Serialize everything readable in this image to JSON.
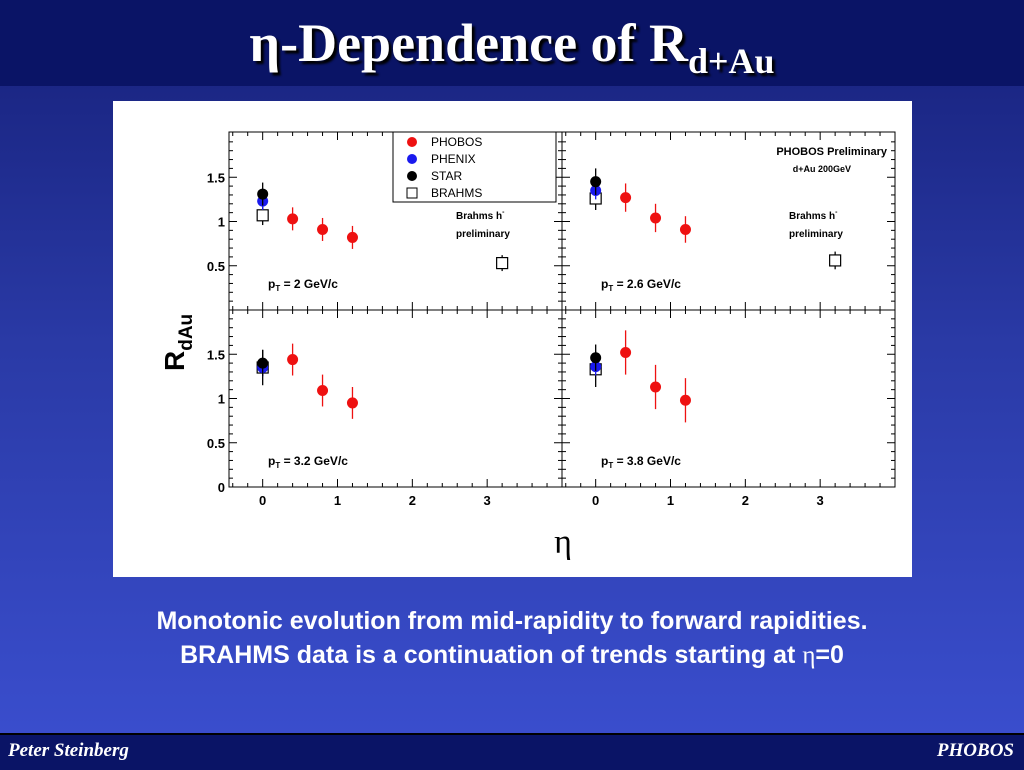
{
  "slide": {
    "title_prefix": "η-Dependence of R",
    "title_subscript": "d+Au",
    "caption_line1": "Monotonic evolution from mid-rapidity to forward rapidities.",
    "caption_line2_prefix": "BRAHMS data is a continuation of trends starting at ",
    "caption_line2_eta": "η",
    "caption_line2_suffix": "=0"
  },
  "footer": {
    "left": "Peter Steinberg",
    "right": "PHOBOS"
  },
  "chart_data": {
    "type": "scatter",
    "ylabel_main": "R",
    "ylabel_sub": "dAu",
    "xlabel": "η",
    "xlim": [
      -0.45,
      4.0
    ],
    "ylim": [
      0,
      2.0
    ],
    "xticks": [
      0,
      1,
      2,
      3
    ],
    "yticks": [
      0,
      0.5,
      1,
      1.5
    ],
    "ytick_labels": [
      "0",
      "0.5",
      "1",
      "1.5"
    ],
    "colors": {
      "PHOBOS": "#ee1111",
      "PHENIX": "#1a1aee",
      "STAR": "#000000",
      "BRAHMS": "#000000"
    },
    "legend": {
      "position": "top-left",
      "entries": [
        {
          "name": "PHOBOS",
          "marker": "filled-circle",
          "color": "#ee1111"
        },
        {
          "name": "PHENIX",
          "marker": "filled-circle",
          "color": "#1a1aee"
        },
        {
          "name": "STAR",
          "marker": "filled-circle",
          "color": "#000000"
        },
        {
          "name": "BRAHMS",
          "marker": "open-square",
          "color": "#000000"
        }
      ]
    },
    "top_right_label": {
      "line1": "PHOBOS Preliminary",
      "line2": "d+Au 200GeV"
    },
    "brahms_note": {
      "line1": "Brahms h",
      "sup": "-",
      "line2": "preliminary"
    },
    "panels": [
      {
        "pt_prefix": "p",
        "pt_sub": "T",
        "pt_value": " = 2 GeV/c",
        "show_brahms_note": true,
        "show_phobos_label": false,
        "show_legend": true,
        "series": [
          {
            "name": "PHOBOS",
            "points": [
              {
                "x": 0.4,
                "y": 1.03,
                "err": 0.13
              },
              {
                "x": 0.8,
                "y": 0.91,
                "err": 0.13
              },
              {
                "x": 1.2,
                "y": 0.82,
                "err": 0.13
              }
            ]
          },
          {
            "name": "BRAHMS",
            "points": [
              {
                "x": 0.0,
                "y": 1.07,
                "err": 0.11
              },
              {
                "x": 3.2,
                "y": 0.53,
                "err": 0.09
              }
            ]
          },
          {
            "name": "PHENIX",
            "points": [
              {
                "x": 0.0,
                "y": 1.23,
                "err": 0.1
              }
            ]
          },
          {
            "name": "STAR",
            "points": [
              {
                "x": 0.0,
                "y": 1.31,
                "err": 0.13
              }
            ]
          }
        ]
      },
      {
        "pt_prefix": "p",
        "pt_sub": "T",
        "pt_value": " = 2.6 GeV/c",
        "show_brahms_note": true,
        "show_phobos_label": true,
        "show_legend": false,
        "series": [
          {
            "name": "PHOBOS",
            "points": [
              {
                "x": 0.4,
                "y": 1.27,
                "err": 0.16
              },
              {
                "x": 0.8,
                "y": 1.04,
                "err": 0.16
              },
              {
                "x": 1.2,
                "y": 0.91,
                "err": 0.15
              }
            ]
          },
          {
            "name": "BRAHMS",
            "points": [
              {
                "x": 0.0,
                "y": 1.26,
                "err": 0.13
              },
              {
                "x": 3.2,
                "y": 0.56,
                "err": 0.1
              }
            ]
          },
          {
            "name": "PHENIX",
            "points": [
              {
                "x": 0.0,
                "y": 1.35,
                "err": 0.1
              }
            ]
          },
          {
            "name": "STAR",
            "points": [
              {
                "x": 0.0,
                "y": 1.45,
                "err": 0.15
              }
            ]
          }
        ]
      },
      {
        "pt_prefix": "p",
        "pt_sub": "T",
        "pt_value": " = 3.2 GeV/c",
        "show_brahms_note": false,
        "show_phobos_label": false,
        "show_legend": false,
        "series": [
          {
            "name": "PHOBOS",
            "points": [
              {
                "x": 0.4,
                "y": 1.44,
                "err": 0.18
              },
              {
                "x": 0.8,
                "y": 1.09,
                "err": 0.18
              },
              {
                "x": 1.2,
                "y": 0.95,
                "err": 0.18
              }
            ]
          },
          {
            "name": "BRAHMS",
            "points": [
              {
                "x": 0.0,
                "y": 1.35,
                "err": 0.2
              }
            ]
          },
          {
            "name": "PHENIX",
            "points": [
              {
                "x": 0.0,
                "y": 1.35,
                "err": 0.1
              }
            ]
          },
          {
            "name": "STAR",
            "points": [
              {
                "x": 0.0,
                "y": 1.4,
                "err": 0.15
              }
            ]
          }
        ]
      },
      {
        "pt_prefix": "p",
        "pt_sub": "T",
        "pt_value": " = 3.8 GeV/c",
        "show_brahms_note": false,
        "show_phobos_label": false,
        "show_legend": false,
        "series": [
          {
            "name": "PHOBOS",
            "points": [
              {
                "x": 0.4,
                "y": 1.52,
                "err": 0.25
              },
              {
                "x": 0.8,
                "y": 1.13,
                "err": 0.25
              },
              {
                "x": 1.2,
                "y": 0.98,
                "err": 0.25
              }
            ]
          },
          {
            "name": "BRAHMS",
            "points": [
              {
                "x": 0.0,
                "y": 1.33,
                "err": 0.2
              }
            ]
          },
          {
            "name": "PHENIX",
            "points": [
              {
                "x": 0.0,
                "y": 1.36,
                "err": 0.1
              }
            ]
          },
          {
            "name": "STAR",
            "points": [
              {
                "x": 0.0,
                "y": 1.46,
                "err": 0.15
              }
            ]
          }
        ]
      }
    ]
  }
}
